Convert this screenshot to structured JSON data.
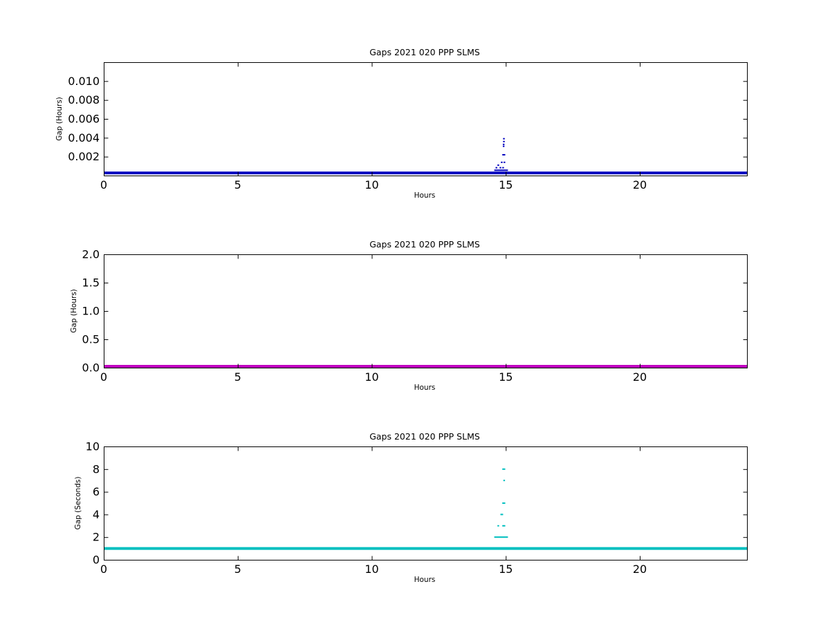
{
  "chart_data": [
    {
      "type": "scatter",
      "title": "Gaps 2021 020 PPP  SLMS",
      "xlabel": "Hours",
      "ylabel": "Gap (Hours)",
      "xlim": [
        0,
        24
      ],
      "ylim": [
        0,
        0.012
      ],
      "xticks": [
        0,
        5,
        10,
        15,
        20
      ],
      "yticks": [
        0.002,
        0.004,
        0.006,
        0.008,
        0.01
      ],
      "ytick_labels": [
        "0.002",
        "0.004",
        "0.006",
        "0.008",
        "0.010"
      ],
      "grid": false,
      "series": [
        {
          "color": "#0000bf",
          "baseline": {
            "x_range": [
              0,
              24
            ],
            "y": 0.000278
          },
          "points": [
            {
              "x": 14.6,
              "y": 0.00056
            },
            {
              "x": 14.65,
              "y": 0.00056
            },
            {
              "x": 14.7,
              "y": 0.00056
            },
            {
              "x": 14.75,
              "y": 0.00056
            },
            {
              "x": 14.8,
              "y": 0.00056
            },
            {
              "x": 14.85,
              "y": 0.00056
            },
            {
              "x": 14.9,
              "y": 0.00056
            },
            {
              "x": 14.95,
              "y": 0.00056
            },
            {
              "x": 15.0,
              "y": 0.00056
            },
            {
              "x": 15.05,
              "y": 0.00056
            },
            {
              "x": 14.65,
              "y": 0.00083
            },
            {
              "x": 14.8,
              "y": 0.00083
            },
            {
              "x": 14.9,
              "y": 0.00083
            },
            {
              "x": 14.72,
              "y": 0.0011
            },
            {
              "x": 14.85,
              "y": 0.0014
            },
            {
              "x": 14.95,
              "y": 0.0014
            },
            {
              "x": 14.9,
              "y": 0.0022
            },
            {
              "x": 14.95,
              "y": 0.0022
            },
            {
              "x": 14.92,
              "y": 0.0031
            },
            {
              "x": 14.92,
              "y": 0.0033
            },
            {
              "x": 14.93,
              "y": 0.0036
            },
            {
              "x": 14.93,
              "y": 0.0039
            }
          ]
        }
      ]
    },
    {
      "type": "scatter",
      "title": "Gaps 2021 020 PPP  SLMS",
      "xlabel": "Hours",
      "ylabel": "Gap (Hours)",
      "xlim": [
        0,
        24
      ],
      "ylim": [
        0,
        2
      ],
      "xticks": [
        0,
        5,
        10,
        15,
        20
      ],
      "yticks": [
        0.0,
        0.5,
        1.0,
        1.5,
        2.0
      ],
      "ytick_labels": [
        "0.0",
        "0.5",
        "1.0",
        "1.5",
        "2.0"
      ],
      "grid": false,
      "series": [
        {
          "color": "#bf00bf",
          "baseline": {
            "x_range": [
              0,
              24
            ],
            "y": 0.0
          }
        }
      ]
    },
    {
      "type": "scatter",
      "title": "Gaps 2021 020 PPP  SLMS",
      "xlabel": "Hours",
      "ylabel": "Gap (Seconds)",
      "xlim": [
        0,
        24
      ],
      "ylim": [
        0,
        10
      ],
      "xticks": [
        0,
        5,
        10,
        15,
        20
      ],
      "yticks": [
        0,
        2,
        4,
        6,
        8,
        10
      ],
      "ytick_labels": [
        "0",
        "2",
        "4",
        "6",
        "8",
        "10"
      ],
      "grid": false,
      "series": [
        {
          "color": "#00bfbf",
          "baseline": {
            "x_range": [
              0,
              24
            ],
            "y": 1
          },
          "points": [
            {
              "x": 14.6,
              "y": 2
            },
            {
              "x": 14.65,
              "y": 2
            },
            {
              "x": 14.7,
              "y": 2
            },
            {
              "x": 14.75,
              "y": 2
            },
            {
              "x": 14.8,
              "y": 2
            },
            {
              "x": 14.85,
              "y": 2
            },
            {
              "x": 14.9,
              "y": 2
            },
            {
              "x": 14.95,
              "y": 2
            },
            {
              "x": 15.0,
              "y": 2
            },
            {
              "x": 15.05,
              "y": 2
            },
            {
              "x": 14.72,
              "y": 3
            },
            {
              "x": 14.9,
              "y": 3
            },
            {
              "x": 14.95,
              "y": 3
            },
            {
              "x": 14.83,
              "y": 4
            },
            {
              "x": 14.87,
              "y": 4
            },
            {
              "x": 14.9,
              "y": 5
            },
            {
              "x": 14.95,
              "y": 5
            },
            {
              "x": 14.94,
              "y": 7
            },
            {
              "x": 14.9,
              "y": 8
            },
            {
              "x": 14.95,
              "y": 8
            }
          ]
        }
      ]
    }
  ]
}
